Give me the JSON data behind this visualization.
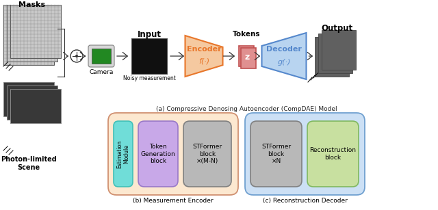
{
  "title_a": "(a) Compressive Denosing Autoencoder (CompDAE) Model",
  "title_b": "(b) Measurement Encoder",
  "title_c": "(c) Reconstruction Decoder",
  "label_masks": "Masks",
  "label_camera": "Camera",
  "label_input": "Input",
  "label_encoder": "Encoder",
  "label_encoder_func": "f(·)",
  "label_tokens": "Tokens",
  "label_z": "z",
  "label_decoder": "Decoder",
  "label_decoder_func": "g(·)",
  "label_output": "Output",
  "label_noisy": "Noisy measurement",
  "label_photon": "Photon-limited\nScene",
  "label_est": "Estimation\nModule",
  "label_token_gen": "Token\nGeneration\nblock",
  "label_stformer1": "STFormer\nblock\n×(M-N)",
  "label_stformer2": "STFormer\nblock\n×N",
  "label_recon": "Reconstruction\nblock",
  "bg_color": "#ffffff",
  "encoder_color": "#e8762a",
  "encoder_light": "#f5c9a0",
  "decoder_color": "#5588cc",
  "decoder_light": "#b8d4f0",
  "z_color": "#c05050",
  "z_light": "#e09090",
  "encoder_box_bg": "#fce8d0",
  "decoder_box_bg": "#cce0f5",
  "est_color": "#70ddd8",
  "token_gen_color": "#c8a8e8",
  "stformer_color": "#b8b8b8",
  "recon_color": "#c8e0a0",
  "mask_grid_color": "#aaaaaa",
  "mask_bg": "#c8c8c8",
  "photon_bg": "#383838"
}
